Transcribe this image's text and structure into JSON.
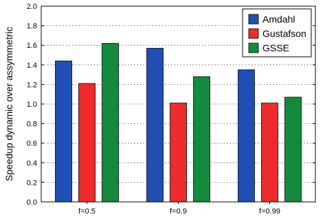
{
  "chart_data": {
    "type": "bar",
    "categories": [
      "f=0.5",
      "f=0.9",
      "f=0.99"
    ],
    "series": [
      {
        "name": "Amdahl",
        "color": "#1f4fb4",
        "values": [
          1.44,
          1.57,
          1.35
        ]
      },
      {
        "name": "Gustafson",
        "color": "#ee2a2a",
        "values": [
          1.21,
          1.01,
          1.01
        ]
      },
      {
        "name": "GSSE",
        "color": "#138a3c",
        "values": [
          1.62,
          1.28,
          1.07
        ]
      }
    ],
    "xlabel": "",
    "ylabel": "Speedup dynamic over assymmetric",
    "ylim": [
      0,
      2.0
    ],
    "yticks": [
      "0.0",
      "0.2",
      "0.4",
      "0.6",
      "0.8",
      "1.0",
      "1.2",
      "1.4",
      "1.6",
      "1.8",
      "2.0"
    ],
    "grid": true,
    "legend_position": "top-right"
  }
}
